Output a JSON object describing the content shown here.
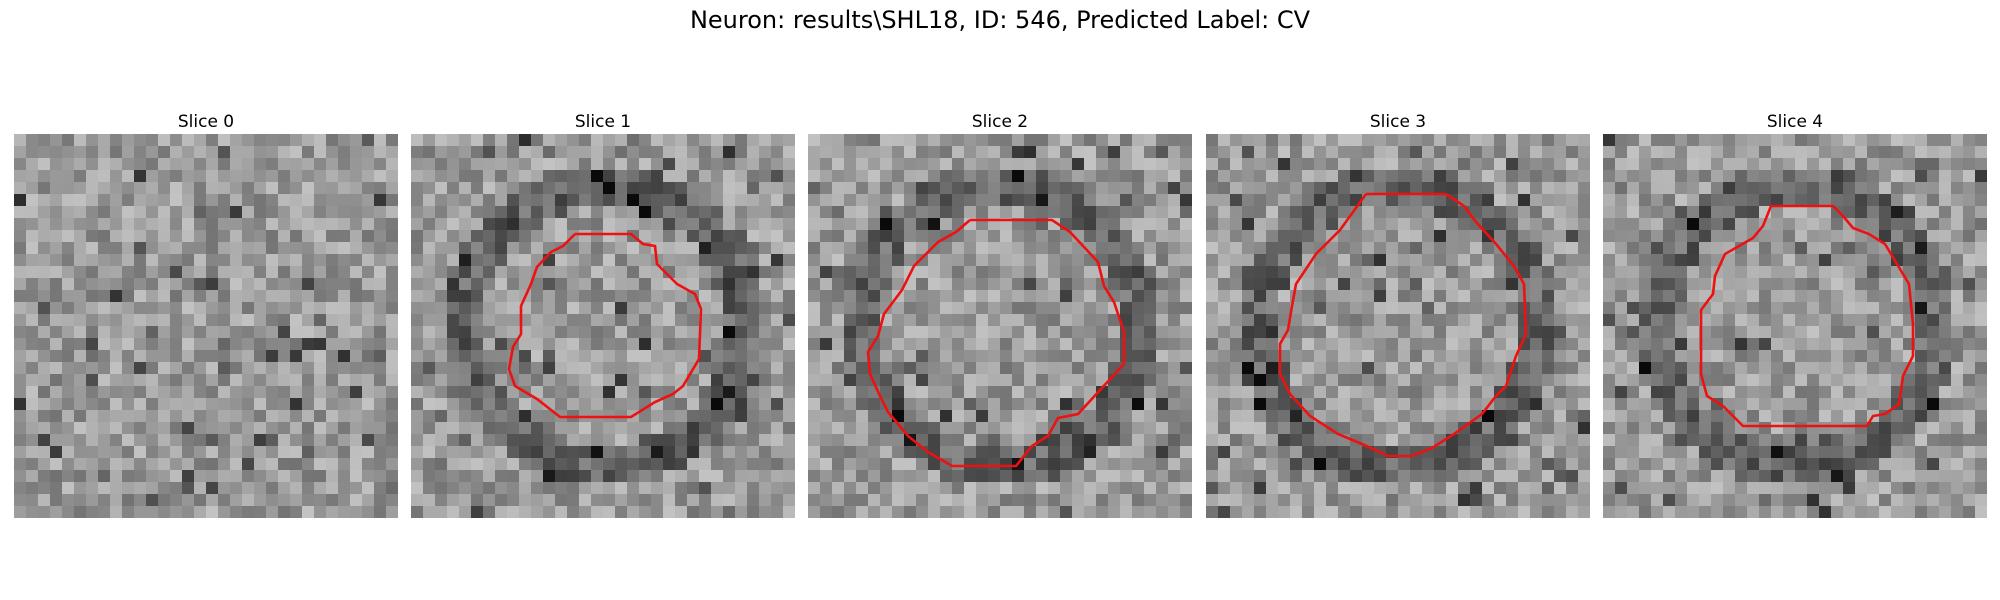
{
  "figure": {
    "title": "Neuron: results\\SHL18, ID: 546, Predicted Label: CV"
  },
  "slices": [
    {
      "label": "Slice 0",
      "has_contour": false
    },
    {
      "label": "Slice 1",
      "has_contour": true
    },
    {
      "label": "Slice 2",
      "has_contour": true
    },
    {
      "label": "Slice 3",
      "has_contour": true
    },
    {
      "label": "Slice 4",
      "has_contour": true
    }
  ],
  "colors": {
    "contour": "#ee1111",
    "background": "#ffffff"
  }
}
